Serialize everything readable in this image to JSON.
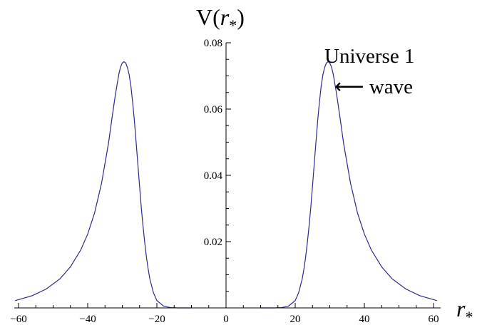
{
  "chart_data": {
    "type": "line",
    "title": "",
    "ylabel": "V(r*)",
    "xlabel": "r*",
    "xlim": [
      -62,
      62
    ],
    "ylim": [
      0,
      0.08
    ],
    "x_ticks": [
      -60,
      -40,
      -20,
      0,
      20,
      40,
      60
    ],
    "y_ticks": [
      0.02,
      0.04,
      0.06,
      0.08
    ],
    "x_tick_labels": [
      "−60",
      "−40",
      "−20",
      "0",
      "20",
      "40",
      "60"
    ],
    "y_tick_labels": [
      "0.02",
      "0.04",
      "0.06",
      "0.08"
    ],
    "grid": false,
    "series": [
      {
        "color": "#2b2b8f",
        "x": [
          -61,
          -56,
          -52,
          -48,
          -45,
          -42,
          -40,
          -38,
          -36,
          -34,
          -33,
          -32,
          -31,
          -30.5,
          -30,
          -29.5,
          -29,
          -28.5,
          -28,
          -27.5,
          -27,
          -26.5,
          -26,
          -25.5,
          -25,
          -24.5,
          -24,
          -23.5,
          -23,
          -22.5,
          -22,
          -21,
          -20,
          -18,
          -16,
          -14,
          -12,
          -10
        ],
        "y": [
          0.0022,
          0.0037,
          0.0057,
          0.0088,
          0.0124,
          0.0175,
          0.0223,
          0.0287,
          0.0376,
          0.0496,
          0.0571,
          0.0643,
          0.0705,
          0.0727,
          0.0739,
          0.0743,
          0.0739,
          0.0725,
          0.0703,
          0.0668,
          0.062,
          0.0565,
          0.05,
          0.0434,
          0.0367,
          0.0302,
          0.0246,
          0.0196,
          0.0152,
          0.0116,
          0.0086,
          0.0046,
          0.0022,
          0.0005,
          0.0001,
          0.0,
          0.0,
          0.0
        ]
      },
      {
        "color": "#2b2b8f",
        "x": [
          10,
          12,
          14,
          16,
          18,
          20,
          21,
          22,
          22.5,
          23,
          23.5,
          24,
          24.5,
          25,
          25.5,
          26,
          26.5,
          27,
          27.5,
          28,
          28.5,
          29,
          29.5,
          30,
          30.5,
          31,
          32,
          33,
          34,
          36,
          38,
          40,
          42,
          45,
          48,
          52,
          56,
          61
        ],
        "y": [
          0.0,
          0.0,
          0.0,
          0.0001,
          0.0005,
          0.0022,
          0.0046,
          0.0086,
          0.0116,
          0.0152,
          0.0196,
          0.0246,
          0.0302,
          0.0367,
          0.0434,
          0.05,
          0.0565,
          0.062,
          0.0668,
          0.0703,
          0.0725,
          0.0739,
          0.0743,
          0.0739,
          0.0727,
          0.0705,
          0.0643,
          0.0571,
          0.0496,
          0.0376,
          0.0287,
          0.0223,
          0.0175,
          0.0124,
          0.0088,
          0.0057,
          0.0037,
          0.0022
        ]
      }
    ],
    "annotations": [
      {
        "text": "Universe 1"
      },
      {
        "text": "⟵ wave"
      }
    ]
  }
}
